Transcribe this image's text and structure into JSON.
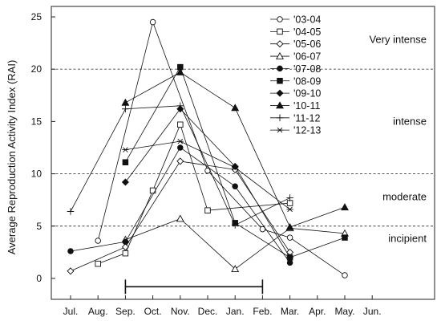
{
  "chart_data": {
    "type": "line",
    "title": "",
    "xlabel": "",
    "ylabel": "Average Reproduction Activity Index (RAI)",
    "categories": [
      "Jul.",
      "Aug.",
      "Sep.",
      "Oct.",
      "Nov.",
      "Dec.",
      "Jan.",
      "Feb.",
      "Mar.",
      "Apr.",
      "May.",
      "Jun."
    ],
    "ylim": [
      -2,
      26
    ],
    "yticks": [
      0,
      5,
      10,
      15,
      20,
      25
    ],
    "thresholds": [
      {
        "value": 5,
        "label": "incipient"
      },
      {
        "value": 10,
        "label": "moderate"
      },
      {
        "value": 20,
        "label": "intense"
      }
    ],
    "zone_labels": [
      {
        "label": "Very intense",
        "y": 22.8
      },
      {
        "label": "intense",
        "y": 15
      },
      {
        "label": "moderate",
        "y": 7.8
      },
      {
        "label": "incipient",
        "y": 3.8
      }
    ],
    "range_bar": {
      "start": "Sep.",
      "end": "Feb.",
      "y": -0.8
    },
    "legend_position": "top-right",
    "series": [
      {
        "name": "'03-04",
        "marker": "circle-open",
        "points": [
          [
            "Aug.",
            3.6
          ],
          [
            "Oct.",
            24.5
          ],
          [
            "Dec.",
            10.3
          ],
          [
            "Feb.",
            4.7
          ],
          [
            "Mar.",
            3.9
          ],
          [
            "May.",
            0.3
          ]
        ]
      },
      {
        "name": "'04-05",
        "marker": "square-open",
        "points": [
          [
            "Aug.",
            1.4
          ],
          [
            "Sep.",
            2.4
          ],
          [
            "Oct.",
            8.4
          ],
          [
            "Nov.",
            14.7
          ],
          [
            "Dec.",
            6.5
          ],
          [
            "Mar.",
            7.2
          ]
        ]
      },
      {
        "name": "'05-06",
        "marker": "diamond-open",
        "points": [
          [
            "Jul.",
            0.7
          ],
          [
            "Sep.",
            3.0
          ],
          [
            "Nov.",
            11.2
          ],
          [
            "Jan.",
            10.4
          ],
          [
            "Mar.",
            2.5
          ]
        ]
      },
      {
        "name": "'06-07",
        "marker": "triangle-open",
        "points": [
          [
            "Sep.",
            3.7
          ],
          [
            "Nov.",
            5.7
          ],
          [
            "Jan.",
            0.9
          ],
          [
            "Mar.",
            4.8
          ],
          [
            "May.",
            4.3
          ]
        ]
      },
      {
        "name": "'07-08",
        "marker": "circle-filled",
        "points": [
          [
            "Jul.",
            2.6
          ],
          [
            "Sep.",
            3.5
          ],
          [
            "Nov.",
            12.5
          ],
          [
            "Jan.",
            8.8
          ],
          [
            "Mar.",
            1.5
          ]
        ]
      },
      {
        "name": "'08-09",
        "marker": "square-filled",
        "points": [
          [
            "Sep.",
            11.1
          ],
          [
            "Nov.",
            20.2
          ],
          [
            "Jan.",
            5.3
          ],
          [
            "Mar.",
            2.0
          ],
          [
            "May.",
            3.9
          ]
        ]
      },
      {
        "name": "'09-10",
        "marker": "diamond-filled",
        "points": [
          [
            "Sep.",
            9.2
          ],
          [
            "Nov.",
            16.2
          ],
          [
            "Jan.",
            10.7
          ],
          [
            "Mar.",
            2.0
          ]
        ]
      },
      {
        "name": "'10-11",
        "marker": "triangle-filled",
        "points": [
          [
            "Sep.",
            16.8
          ],
          [
            "Nov.",
            19.7
          ],
          [
            "Jan.",
            16.3
          ],
          [
            "Mar.",
            4.9
          ],
          [
            "May.",
            6.8
          ]
        ]
      },
      {
        "name": "'11-12",
        "marker": "plus",
        "points": [
          [
            "Jul.",
            6.4
          ],
          [
            "Sep.",
            16.2
          ],
          [
            "Nov.",
            16.5
          ],
          [
            "Jan.",
            5.1
          ],
          [
            "Mar.",
            7.7
          ]
        ]
      },
      {
        "name": "'12-13",
        "marker": "asterisk",
        "points": [
          [
            "Sep.",
            12.3
          ],
          [
            "Nov.",
            13.1
          ],
          [
            "Jan.",
            10.6
          ],
          [
            "Mar.",
            6.6
          ]
        ]
      }
    ]
  }
}
